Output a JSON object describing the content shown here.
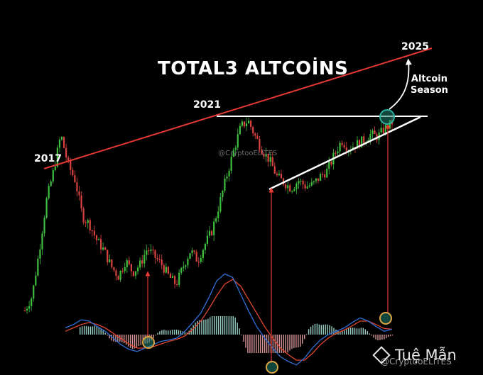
{
  "title": "TOTAL3 ALTCOİNS",
  "labels": {
    "y2017": "2017",
    "y2021": "2021",
    "y2025": "2025",
    "altcoin_season": [
      "Altcoin",
      "Season"
    ]
  },
  "watermark": "@CryptooELİTES",
  "footer": {
    "handle": "@CryptooELİTES",
    "brand": "Tuệ Mẫn"
  },
  "colors": {
    "background": "#000000",
    "up_candle": "#3fbf3f",
    "down_candle": "#d9433f",
    "resistance": "#e53935",
    "trendline": "#ffffff",
    "arrow": "#e53935",
    "circle": "#2bb5a0",
    "macd_line": "#2f6fd6",
    "signal_line": "#e0462f",
    "hist_up": "#a8e6d8",
    "hist_down": "#f0a8a8"
  },
  "chart_data": {
    "type": "candlestick",
    "title": "TOTAL3 ALTCOİNS",
    "annotations": [
      "2017",
      "2021",
      "2025",
      "Altcoin Season"
    ],
    "price_path_relative": [
      0.05,
      0.12,
      0.35,
      0.6,
      0.75,
      0.93,
      0.78,
      0.7,
      0.52,
      0.48,
      0.4,
      0.35,
      0.27,
      0.22,
      0.3,
      0.24,
      0.28,
      0.36,
      0.32,
      0.28,
      0.22,
      0.18,
      0.27,
      0.35,
      0.3,
      0.38,
      0.45,
      0.58,
      0.72,
      0.85,
      0.97,
      1.0,
      0.92,
      0.85,
      0.8,
      0.72,
      0.69,
      0.66,
      0.7,
      0.67,
      0.68,
      0.72,
      0.75,
      0.83,
      0.9,
      0.86,
      0.88,
      0.9,
      0.93,
      0.92,
      0.96,
      0.99
    ],
    "macd_line_relative": [
      0.1,
      0.15,
      0.22,
      0.2,
      0.12,
      0.05,
      -0.05,
      -0.15,
      -0.22,
      -0.25,
      -0.2,
      -0.15,
      -0.1,
      -0.08,
      -0.05,
      0.05,
      0.18,
      0.32,
      0.55,
      0.8,
      0.9,
      0.85,
      0.6,
      0.35,
      0.12,
      -0.05,
      -0.2,
      -0.33,
      -0.4,
      -0.45,
      -0.35,
      -0.2,
      -0.08,
      0.0,
      0.05,
      0.1,
      0.18,
      0.25,
      0.2,
      0.12,
      0.05,
      0.08
    ],
    "signal_line_relative": [
      0.05,
      0.1,
      0.15,
      0.18,
      0.15,
      0.1,
      0.02,
      -0.06,
      -0.14,
      -0.2,
      -0.2,
      -0.18,
      -0.14,
      -0.1,
      -0.07,
      -0.02,
      0.08,
      0.2,
      0.38,
      0.58,
      0.75,
      0.82,
      0.72,
      0.52,
      0.32,
      0.12,
      -0.05,
      -0.2,
      -0.3,
      -0.38,
      -0.38,
      -0.28,
      -0.15,
      -0.05,
      0.02,
      0.07,
      0.13,
      0.2,
      0.2,
      0.15,
      0.09,
      0.08
    ]
  }
}
